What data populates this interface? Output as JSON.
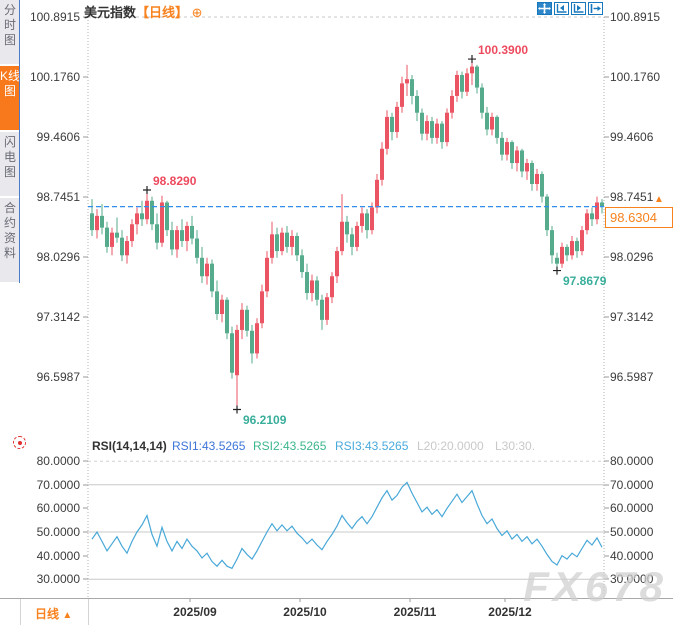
{
  "title": {
    "symbol": "美元指数",
    "period": "【日线】"
  },
  "icons": {
    "gear": "⊕",
    "arrow_up": "▲",
    "toolbar": [
      "pan-move-icon",
      "compress-x-axis-icon",
      "expand-x-axis-icon",
      "exit-right-icon"
    ],
    "rsi_settings": "indicator-settings-icon"
  },
  "sidebar": {
    "tabs": [
      {
        "label": "分时图",
        "active": false
      },
      {
        "label": "K线图",
        "active": true
      },
      {
        "label": "闪电图",
        "active": false
      },
      {
        "label": "合约资料",
        "active": false
      }
    ]
  },
  "rsi_header": {
    "name": "RSI(14,14,14)",
    "rsi1": "RSI1:43.5265",
    "rsi2": "RSI2:43.5265",
    "rsi3": "RSI3:43.5265",
    "l20": "L20:20.0000",
    "l30": "L30:30."
  },
  "price_marker": {
    "value": "98.6304"
  },
  "bottom": {
    "period_label": "日线"
  },
  "watermark": "FX678",
  "colors": {
    "up": "#eb5463",
    "down": "#55ab8b",
    "anno_high": "#ed4a5e",
    "anno_low": "#38ae9b",
    "price_line": "#2f8ded",
    "accent_orange": "#f8821e",
    "rsi_line": "#48a8d8",
    "toolbar_blue": "#1878be"
  },
  "chart_data": {
    "type": "candlestick",
    "symbol": "美元指数",
    "period": "日线",
    "y_tick_labels": [
      "100.8915",
      "100.1760",
      "99.4606",
      "98.7451",
      "98.0296",
      "97.3142",
      "96.5987"
    ],
    "x_tick_labels": [
      "2025/09",
      "2025/10",
      "2025/11",
      "2025/12"
    ],
    "last_price": 98.6304,
    "candles_ohlc": [
      [
        98.55,
        98.72,
        98.28,
        98.35
      ],
      [
        98.35,
        98.6,
        98.25,
        98.52
      ],
      [
        98.52,
        98.66,
        98.3,
        98.38
      ],
      [
        98.38,
        98.45,
        98.08,
        98.15
      ],
      [
        98.15,
        98.38,
        98.05,
        98.32
      ],
      [
        98.32,
        98.5,
        98.2,
        98.26
      ],
      [
        98.26,
        98.35,
        97.98,
        98.05
      ],
      [
        98.05,
        98.28,
        97.95,
        98.22
      ],
      [
        98.22,
        98.48,
        98.15,
        98.42
      ],
      [
        98.42,
        98.62,
        98.3,
        98.55
      ],
      [
        98.55,
        98.7,
        98.4,
        98.48
      ],
      [
        98.48,
        98.829,
        98.42,
        98.7
      ],
      [
        98.7,
        98.75,
        98.35,
        98.42
      ],
      [
        98.42,
        98.55,
        98.12,
        98.2
      ],
      [
        98.2,
        98.76,
        98.15,
        98.68
      ],
      [
        98.68,
        98.7,
        98.28,
        98.35
      ],
      [
        98.35,
        98.45,
        98.05,
        98.12
      ],
      [
        98.12,
        98.4,
        98.02,
        98.35
      ],
      [
        98.35,
        98.48,
        98.15,
        98.22
      ],
      [
        98.22,
        98.45,
        98.1,
        98.4
      ],
      [
        98.4,
        98.52,
        98.18,
        98.25
      ],
      [
        98.25,
        98.35,
        97.95,
        98.02
      ],
      [
        98.02,
        98.15,
        97.72,
        97.8
      ],
      [
        97.8,
        98.02,
        97.7,
        97.95
      ],
      [
        97.95,
        98.0,
        97.55,
        97.62
      ],
      [
        97.62,
        97.75,
        97.28,
        97.35
      ],
      [
        97.35,
        97.58,
        97.25,
        97.52
      ],
      [
        97.52,
        97.55,
        97.05,
        97.12
      ],
      [
        97.12,
        97.2,
        96.58,
        96.65
      ],
      [
        96.62,
        97.22,
        96.2109,
        97.16
      ],
      [
        97.16,
        97.48,
        97.05,
        97.4
      ],
      [
        97.4,
        97.45,
        97.08,
        97.15
      ],
      [
        97.15,
        97.22,
        96.76,
        96.88
      ],
      [
        96.88,
        97.3,
        96.82,
        97.24
      ],
      [
        97.24,
        97.7,
        97.18,
        97.62
      ],
      [
        97.62,
        98.1,
        97.55,
        98.02
      ],
      [
        98.02,
        98.45,
        97.95,
        98.3
      ],
      [
        98.3,
        98.38,
        98.02,
        98.1
      ],
      [
        98.1,
        98.38,
        98.05,
        98.32
      ],
      [
        98.32,
        98.4,
        98.08,
        98.15
      ],
      [
        98.15,
        98.35,
        98.05,
        98.28
      ],
      [
        98.28,
        98.32,
        97.98,
        98.05
      ],
      [
        98.05,
        98.12,
        97.78,
        97.85
      ],
      [
        97.85,
        97.95,
        97.52,
        97.6
      ],
      [
        97.6,
        97.82,
        97.5,
        97.75
      ],
      [
        97.75,
        97.8,
        97.45,
        97.52
      ],
      [
        97.52,
        97.58,
        97.16,
        97.28
      ],
      [
        97.28,
        97.6,
        97.22,
        97.55
      ],
      [
        97.55,
        97.85,
        97.48,
        97.8
      ],
      [
        97.8,
        98.15,
        97.72,
        98.1
      ],
      [
        98.1,
        98.78,
        98.05,
        98.45
      ],
      [
        98.45,
        98.52,
        98.2,
        98.3
      ],
      [
        98.3,
        98.38,
        98.05,
        98.15
      ],
      [
        98.15,
        98.45,
        98.1,
        98.4
      ],
      [
        98.4,
        98.62,
        98.32,
        98.55
      ],
      [
        98.55,
        98.6,
        98.25,
        98.35
      ],
      [
        98.35,
        98.68,
        98.3,
        98.62
      ],
      [
        98.62,
        99.02,
        98.55,
        98.95
      ],
      [
        98.95,
        99.4,
        98.88,
        99.32
      ],
      [
        99.32,
        99.78,
        99.25,
        99.7
      ],
      [
        99.7,
        99.75,
        99.42,
        99.52
      ],
      [
        99.52,
        99.88,
        99.45,
        99.82
      ],
      [
        99.82,
        100.18,
        99.75,
        100.1
      ],
      [
        100.1,
        100.32,
        99.95,
        100.15
      ],
      [
        100.15,
        100.2,
        99.85,
        99.95
      ],
      [
        99.95,
        100.02,
        99.65,
        99.75
      ],
      [
        99.75,
        99.8,
        99.42,
        99.5
      ],
      [
        99.5,
        99.72,
        99.42,
        99.65
      ],
      [
        99.65,
        99.7,
        99.38,
        99.45
      ],
      [
        99.45,
        99.68,
        99.38,
        99.62
      ],
      [
        99.62,
        99.65,
        99.32,
        99.4
      ],
      [
        99.4,
        99.8,
        99.35,
        99.75
      ],
      [
        99.75,
        100.02,
        99.68,
        99.95
      ],
      [
        99.95,
        100.25,
        99.88,
        100.2
      ],
      [
        100.2,
        100.24,
        99.92,
        100.0
      ],
      [
        100.0,
        100.28,
        99.95,
        100.22
      ],
      [
        100.22,
        100.39,
        100.08,
        100.3
      ],
      [
        100.3,
        100.32,
        99.98,
        100.05
      ],
      [
        100.05,
        100.1,
        99.68,
        99.75
      ],
      [
        99.75,
        99.82,
        99.48,
        99.55
      ],
      [
        99.55,
        99.75,
        99.48,
        99.7
      ],
      [
        99.7,
        99.72,
        99.38,
        99.45
      ],
      [
        99.45,
        99.52,
        99.18,
        99.25
      ],
      [
        99.25,
        99.45,
        99.18,
        99.4
      ],
      [
        99.4,
        99.42,
        99.08,
        99.15
      ],
      [
        99.15,
        99.35,
        99.05,
        99.3
      ],
      [
        99.3,
        99.32,
        98.98,
        99.05
      ],
      [
        99.05,
        99.2,
        98.95,
        99.15
      ],
      [
        99.15,
        99.18,
        98.82,
        98.9
      ],
      [
        98.9,
        99.08,
        98.82,
        99.02
      ],
      [
        99.02,
        99.05,
        98.68,
        98.75
      ],
      [
        98.75,
        98.78,
        98.28,
        98.35
      ],
      [
        98.35,
        98.4,
        97.95,
        98.05
      ],
      [
        98.02,
        98.08,
        97.8679,
        97.95
      ],
      [
        97.95,
        98.2,
        97.9,
        98.15
      ],
      [
        98.15,
        98.18,
        97.98,
        98.05
      ],
      [
        98.05,
        98.28,
        98.0,
        98.22
      ],
      [
        98.22,
        98.26,
        98.02,
        98.1
      ],
      [
        98.1,
        98.4,
        98.05,
        98.35
      ],
      [
        98.35,
        98.6,
        98.3,
        98.55
      ],
      [
        98.55,
        98.62,
        98.4,
        98.48
      ],
      [
        98.48,
        98.75,
        98.42,
        98.68
      ],
      [
        98.68,
        98.72,
        98.55,
        98.6304
      ]
    ],
    "annotations": [
      {
        "text": "98.8290",
        "price": 98.829,
        "index": 11,
        "side": "above",
        "kind": "high"
      },
      {
        "text": "100.3900",
        "price": 100.39,
        "index": 76,
        "side": "above",
        "kind": "high"
      },
      {
        "text": "96.2109",
        "price": 96.2109,
        "index": 29,
        "side": "below",
        "kind": "low"
      },
      {
        "text": "97.8679",
        "price": 97.8679,
        "index": 93,
        "side": "below",
        "kind": "low"
      }
    ],
    "indicator": {
      "type": "line",
      "name": "RSI(14,14,14)",
      "y_tick_labels": [
        "80.0000",
        "70.0000",
        "60.0000",
        "50.0000",
        "40.0000",
        "30.0000"
      ],
      "ref_lines_solid": [
        70,
        50,
        30
      ],
      "ref_lines_dashed": [
        80
      ],
      "values": [
        47,
        50,
        46,
        42,
        45,
        48,
        44,
        41,
        46,
        50,
        53,
        57,
        49,
        44,
        52,
        46,
        42,
        46,
        43,
        47,
        44,
        42,
        39,
        41,
        37.5,
        35.5,
        38,
        35.5,
        34.6,
        38.5,
        43,
        40.5,
        38.5,
        42,
        46,
        50,
        53.5,
        50.5,
        53,
        50.5,
        52.5,
        49.5,
        47.5,
        45,
        47,
        44.5,
        42.5,
        46,
        49,
        52.5,
        57,
        54,
        51.5,
        54.5,
        56.5,
        53.5,
        56.5,
        60.5,
        64.5,
        67.5,
        63.5,
        65.5,
        69,
        71,
        66.5,
        62.5,
        58.5,
        60.5,
        57.5,
        59.5,
        56.5,
        60,
        63,
        66,
        62.5,
        65,
        67.5,
        62,
        57,
        53.5,
        55.5,
        51.5,
        48.5,
        50.5,
        47,
        49,
        46,
        48,
        45,
        47,
        44,
        40.5,
        37.5,
        36,
        40,
        38.5,
        41,
        39.5,
        43,
        46.5,
        44.5,
        47.5,
        43.5265
      ]
    }
  }
}
